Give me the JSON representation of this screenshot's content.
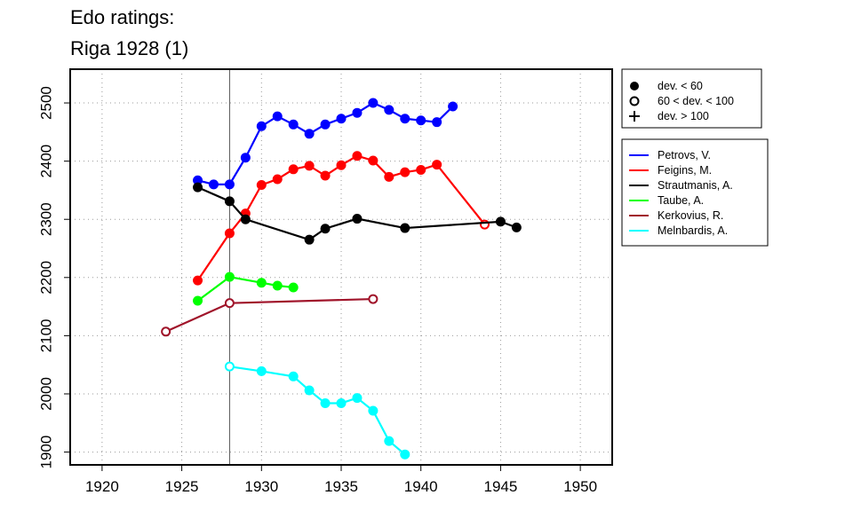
{
  "chart_data": {
    "type": "line",
    "title_lines": [
      "Edo ratings:",
      "Riga 1928 (1)"
    ],
    "xlabel": "",
    "ylabel": "",
    "xlim": [
      1918,
      1952
    ],
    "ylim": [
      1878,
      2558
    ],
    "x_ticks": [
      1920,
      1925,
      1930,
      1935,
      1940,
      1945,
      1950
    ],
    "y_ticks": [
      1900,
      2000,
      2100,
      2200,
      2300,
      2400,
      2500
    ],
    "grid": true,
    "grid_style": "dotted",
    "vertical_marker_year": 1928,
    "deviation_legend": {
      "position": "top-right",
      "items": [
        {
          "marker": "filled",
          "label": "dev. < 60"
        },
        {
          "marker": "open",
          "label": "60 < dev. < 100"
        },
        {
          "marker": "plus",
          "label": "dev. > 100"
        }
      ]
    },
    "series_legend_position": "right",
    "series": [
      {
        "name": "Petrovs, V.",
        "color": "#0000ff",
        "x": [
          1926,
          1927,
          1928,
          1929,
          1930,
          1931,
          1932,
          1933,
          1934,
          1935,
          1936,
          1937,
          1938,
          1939,
          1940,
          1941,
          1942
        ],
        "y": [
          2367,
          2360,
          2360,
          2406,
          2460,
          2477,
          2463,
          2447,
          2463,
          2473,
          2483,
          2500,
          2488,
          2473,
          2470,
          2467,
          2494
        ],
        "markers": [
          "filled",
          "filled",
          "filled",
          "filled",
          "filled",
          "filled",
          "filled",
          "filled",
          "filled",
          "filled",
          "filled",
          "filled",
          "filled",
          "filled",
          "filled",
          "filled",
          "filled"
        ]
      },
      {
        "name": "Feigins, M.",
        "color": "#ff0000",
        "x": [
          1926,
          1928,
          1929,
          1930,
          1931,
          1932,
          1933,
          1934,
          1935,
          1936,
          1937,
          1938,
          1939,
          1940,
          1941,
          1944
        ],
        "y": [
          2195,
          2276,
          2310,
          2359,
          2369,
          2386,
          2392,
          2375,
          2393,
          2409,
          2401,
          2373,
          2381,
          2385,
          2394,
          2291
        ],
        "markers": [
          "filled",
          "filled",
          "filled",
          "filled",
          "filled",
          "filled",
          "filled",
          "filled",
          "filled",
          "filled",
          "filled",
          "filled",
          "filled",
          "filled",
          "filled",
          "open"
        ]
      },
      {
        "name": "Strautmanis, A.",
        "color": "#000000",
        "x": [
          1926,
          1928,
          1929,
          1933,
          1934,
          1936,
          1939,
          1945,
          1946
        ],
        "y": [
          2355,
          2331,
          2300,
          2265,
          2284,
          2301,
          2285,
          2296,
          2286
        ],
        "markers": [
          "filled",
          "filled",
          "filled",
          "filled",
          "filled",
          "filled",
          "filled",
          "filled",
          "filled"
        ]
      },
      {
        "name": "Taube, A.",
        "color": "#00ff00",
        "x": [
          1926,
          1928,
          1930,
          1931,
          1932
        ],
        "y": [
          2160,
          2201,
          2191,
          2186,
          2183
        ],
        "markers": [
          "filled",
          "filled",
          "filled",
          "filled",
          "filled"
        ]
      },
      {
        "name": "Kerkovius, R.",
        "color": "#a0142a",
        "x": [
          1924,
          1928,
          1937
        ],
        "y": [
          2107,
          2156,
          2163
        ],
        "markers": [
          "open",
          "open",
          "open"
        ]
      },
      {
        "name": "Melnbardis, A.",
        "color": "#00ffff",
        "x": [
          1928,
          1930,
          1932,
          1933,
          1934,
          1935,
          1936,
          1937,
          1938,
          1939
        ],
        "y": [
          2047,
          2039,
          2030,
          2006,
          1984,
          1984,
          1993,
          1971,
          1919,
          1896
        ],
        "markers": [
          "open",
          "filled",
          "filled",
          "filled",
          "filled",
          "filled",
          "filled",
          "filled",
          "filled",
          "filled"
        ]
      }
    ]
  }
}
